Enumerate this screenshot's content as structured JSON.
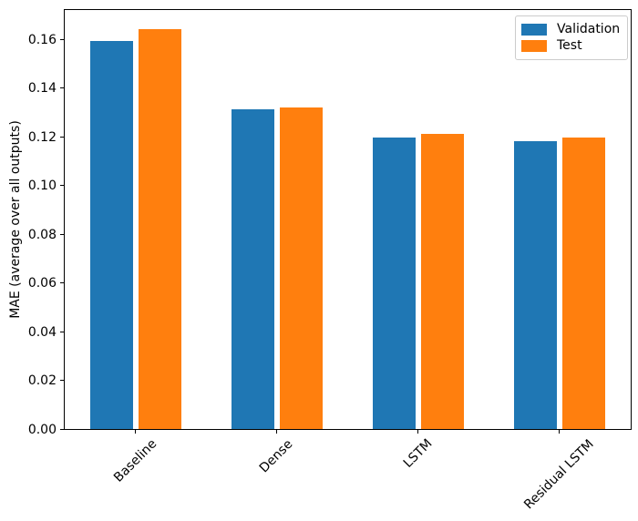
{
  "chart_data": {
    "type": "bar",
    "title": "",
    "categories": [
      "Baseline",
      "Dense",
      "LSTM",
      "Residual LSTM"
    ],
    "series": [
      {
        "name": "Validation",
        "color": "#1f77b4",
        "values": [
          0.159,
          0.131,
          0.1195,
          0.118
        ]
      },
      {
        "name": "Test",
        "color": "#ff7f0e",
        "values": [
          0.164,
          0.132,
          0.121,
          0.1195
        ]
      }
    ],
    "xlabel": "",
    "ylabel": "MAE (average over all outputs)",
    "ylim": [
      0,
      0.1726
    ],
    "yticks": [
      0.0,
      0.02,
      0.04,
      0.06,
      0.08,
      0.1,
      0.12,
      0.14,
      0.16
    ],
    "ytick_labels": [
      "0.00",
      "0.02",
      "0.04",
      "0.06",
      "0.08",
      "0.10",
      "0.12",
      "0.14",
      "0.16"
    ],
    "x_tick_rotation": 45,
    "grid": false,
    "legend": {
      "position": "upper right",
      "entries": [
        "Validation",
        "Test"
      ]
    }
  }
}
